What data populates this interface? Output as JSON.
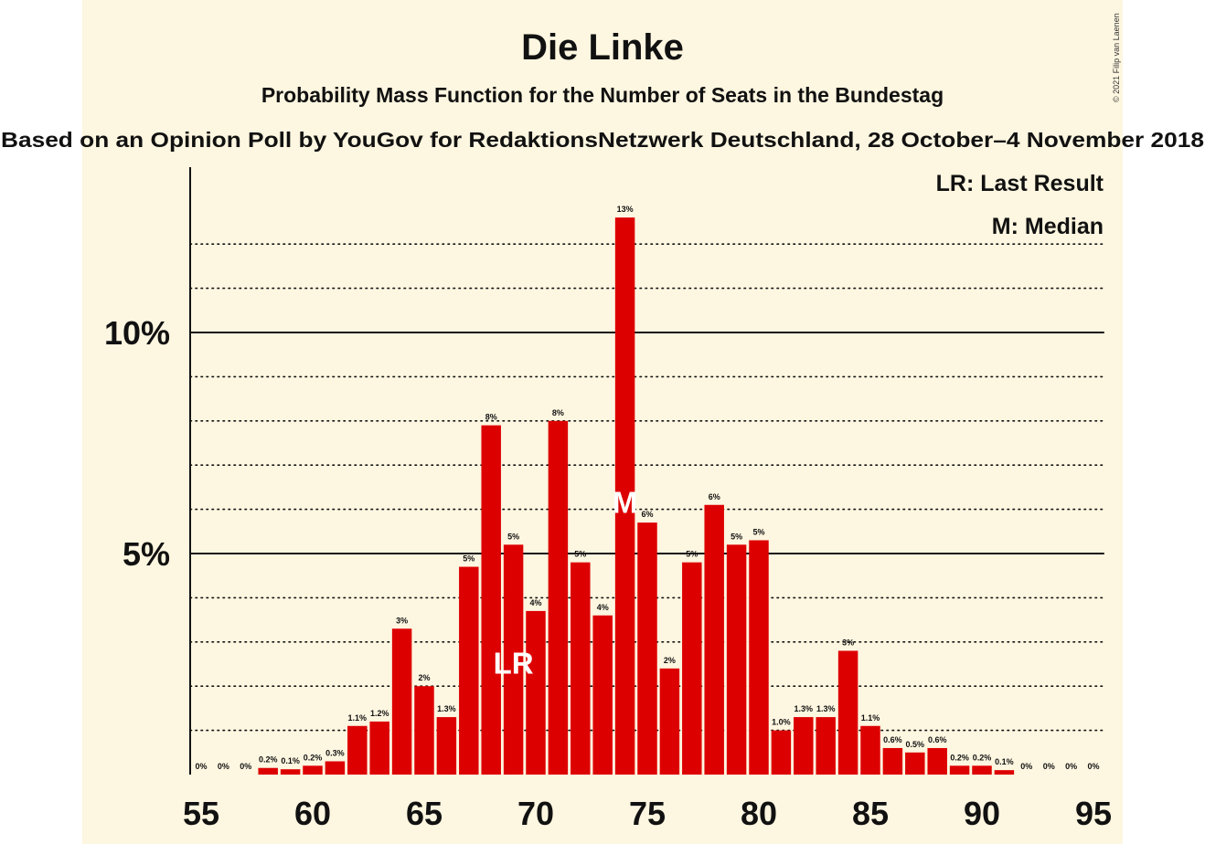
{
  "colors": {
    "background": "#fdf6e0",
    "bar": "#dd0000",
    "text": "#111111",
    "marker": "#ffffff"
  },
  "chart_data": {
    "type": "bar",
    "title": "Die Linke",
    "subtitle": "Probability Mass Function for the Number of Seats in the Bundestag",
    "source": "Based on an Opinion Poll by YouGov for RedaktionsNetzwerk Deutschland, 28 October–4 November 2018",
    "copyright": "© 2021 Filip van Laenen",
    "legend": [
      "LR: Last Result",
      "M: Median"
    ],
    "legend_position": "top-right",
    "x": [
      55,
      56,
      57,
      58,
      59,
      60,
      61,
      62,
      63,
      64,
      65,
      66,
      67,
      68,
      69,
      70,
      71,
      72,
      73,
      74,
      75,
      76,
      77,
      78,
      79,
      80,
      81,
      82,
      83,
      84,
      85,
      86,
      87,
      88,
      89,
      90,
      91,
      92,
      93,
      94,
      95
    ],
    "values": [
      0,
      0,
      0,
      0.15,
      0.12,
      0.2,
      0.3,
      1.1,
      1.2,
      3.3,
      2.0,
      1.3,
      4.7,
      7.9,
      5.2,
      3.7,
      8.0,
      4.8,
      3.6,
      12.6,
      5.7,
      2.4,
      4.8,
      6.1,
      5.2,
      5.3,
      1.0,
      1.3,
      1.3,
      2.8,
      1.1,
      0.6,
      0.5,
      0.6,
      0.2,
      0.2,
      0.1,
      0,
      0,
      0,
      0
    ],
    "data_labels": [
      "0%",
      "0%",
      "0%",
      "0.2%",
      "0.1%",
      "0.2%",
      "0.3%",
      "1.1%",
      "1.2%",
      "3%",
      "2%",
      "1.3%",
      "5%",
      "8%",
      "5%",
      "4%",
      "8%",
      "5%",
      "4%",
      "13%",
      "6%",
      "2%",
      "5%",
      "6%",
      "5%",
      "5%",
      "1.0%",
      "1.3%",
      "1.3%",
      "3%",
      "1.1%",
      "0.6%",
      "0.5%",
      "0.6%",
      "0.2%",
      "0.2%",
      "0.1%",
      "0%",
      "0%",
      "0%",
      "0%"
    ],
    "x_ticks": [
      55,
      60,
      65,
      70,
      75,
      80,
      85,
      90,
      95
    ],
    "y_ticks": [
      {
        "value": 5,
        "label": "5%"
      },
      {
        "value": 10,
        "label": "10%"
      }
    ],
    "ylim": [
      0,
      13.5
    ],
    "grid": "dotted every 1%, solid at 5% and 10%",
    "last_result": {
      "x": 69,
      "label": "LR"
    },
    "median": {
      "x": 74,
      "label": "M"
    }
  }
}
